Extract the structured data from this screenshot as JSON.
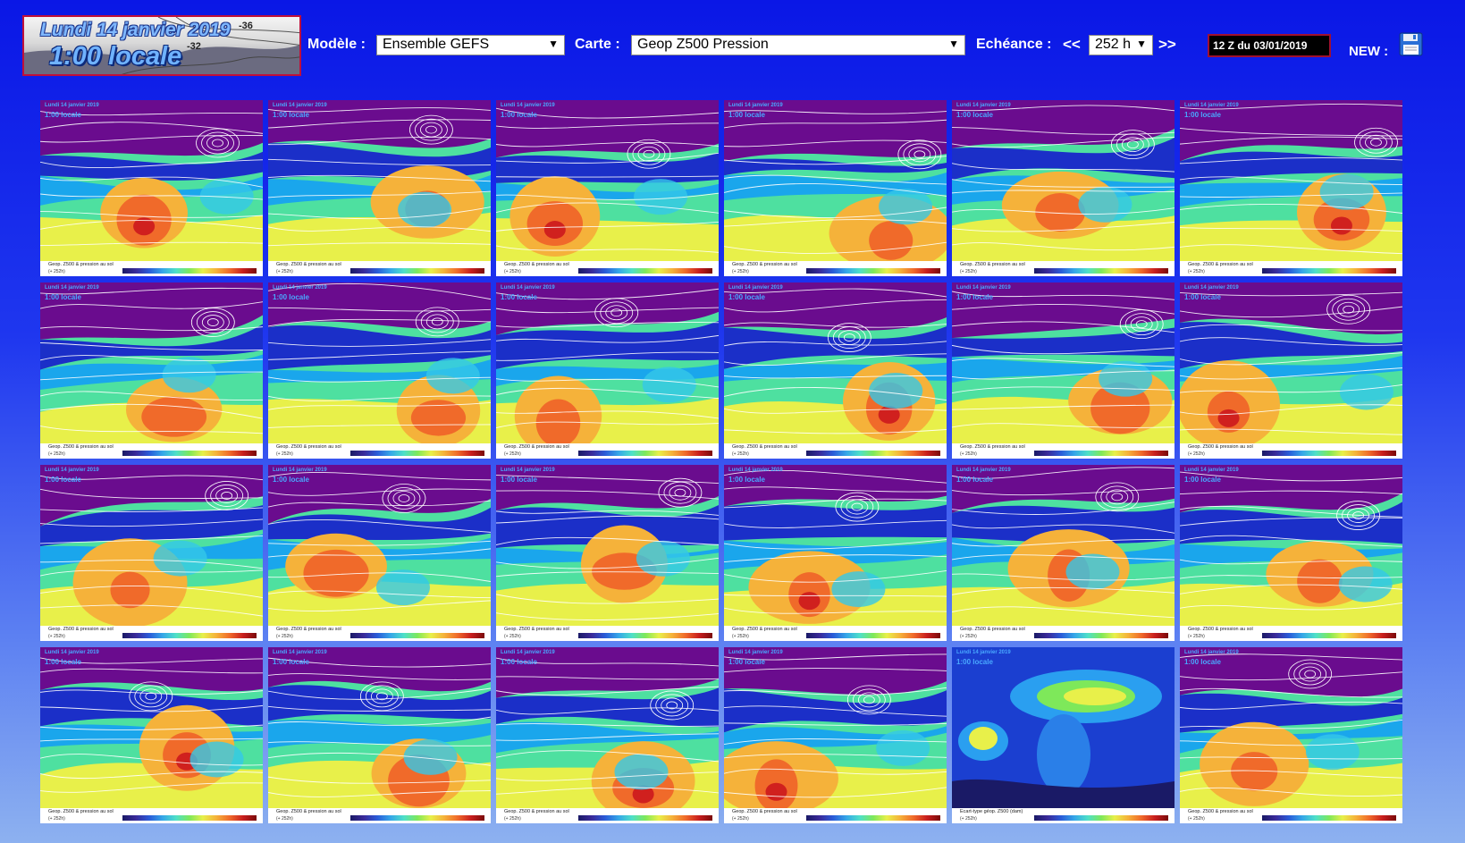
{
  "banner": {
    "date": "Lundi 14 janvier 2019",
    "time": "1:00 locale",
    "iso_a": "-36",
    "iso_b": "-32"
  },
  "controls": {
    "model_label": "Modèle :",
    "model_value": "Ensemble GEFS",
    "map_label": "Carte :",
    "map_value": "Geop Z500 Pression",
    "echeance_label": "Echéance :",
    "prev": "<<",
    "echeance_value": "252 h",
    "next": ">>",
    "run": "12 Z du 03/01/2019",
    "new_label": "NEW :"
  },
  "icons": {
    "save": "floppy-disk-icon",
    "dropdown": "chevron-down-icon"
  },
  "tiles": [
    {
      "type": "member",
      "top": "Lundi 14 janvier 2019",
      "sub": "1:00 locale",
      "ripple": "0"
    },
    {
      "type": "member",
      "top": "Lundi 14 janvier 2019",
      "sub": "1:00 locale",
      "ripple": "1"
    },
    {
      "type": "member",
      "top": "Lundi 14 janvier 2019",
      "sub": "1:00 locale",
      "ripple": "2"
    },
    {
      "type": "member",
      "top": "Lundi 14 janvier 2019",
      "sub": "1:00 locale",
      "ripple": "3"
    },
    {
      "type": "member",
      "top": "Lundi 14 janvier 2019",
      "sub": "1:00 locale",
      "ripple": "4"
    },
    {
      "type": "member",
      "top": "Lundi 14 janvier 2019",
      "sub": "1:00 locale",
      "ripple": "5"
    },
    {
      "type": "member",
      "top": "Lundi 14 janvier 2019",
      "sub": "1:00 locale",
      "ripple": "6"
    },
    {
      "type": "member",
      "top": "Lundi 14 janvier 2019",
      "sub": "1:00 locale",
      "ripple": "7"
    },
    {
      "type": "member",
      "top": "Lundi 14 janvier 2019",
      "sub": "1:00 locale",
      "ripple": "8"
    },
    {
      "type": "member",
      "top": "Lundi 14 janvier 2019",
      "sub": "1:00 locale",
      "ripple": "9"
    },
    {
      "type": "member",
      "top": "Lundi 14 janvier 2019",
      "sub": "1:00 locale",
      "ripple": "10"
    },
    {
      "type": "member",
      "top": "Lundi 14 janvier 2019",
      "sub": "1:00 locale",
      "ripple": "11"
    },
    {
      "type": "member",
      "top": "Lundi 14 janvier 2019",
      "sub": "1:00 locale",
      "ripple": "12"
    },
    {
      "type": "member",
      "top": "Lundi 14 janvier 2019",
      "sub": "1:00 locale",
      "ripple": "13"
    },
    {
      "type": "member",
      "top": "Lundi 14 janvier 2019",
      "sub": "1:00 locale",
      "ripple": "14"
    },
    {
      "type": "member",
      "top": "Lundi 14 janvier 2019",
      "sub": "1:00 locale",
      "ripple": "15"
    },
    {
      "type": "member",
      "top": "Lundi 14 janvier 2019",
      "sub": "1:00 locale",
      "ripple": "16"
    },
    {
      "type": "member",
      "top": "Lundi 14 janvier 2019",
      "sub": "1:00 locale",
      "ripple": "17"
    },
    {
      "type": "member",
      "top": "Lundi 14 janvier 2019",
      "sub": "1:00 locale",
      "ripple": "18"
    },
    {
      "type": "member",
      "top": "Lundi 14 janvier 2019",
      "sub": "1:00 locale",
      "ripple": "19"
    },
    {
      "type": "member",
      "top": "Lundi 14 janvier 2019",
      "sub": "1:00 locale",
      "ripple": "20"
    },
    {
      "type": "member",
      "top": "Lundi 14 janvier 2019",
      "sub": "1:00 locale",
      "ripple": "21"
    },
    {
      "type": "spread",
      "top": "Lundi 14 janvier 2019",
      "sub": "1:00 locale",
      "ripple": "22"
    },
    {
      "type": "member",
      "top": "Lundi 14 janvier 2019",
      "sub": "1:00 locale",
      "ripple": "23"
    }
  ],
  "caption": {
    "member": "Geop. Z500 & pression au sol",
    "spread": "Ecart-type géop. Z500 (dam)",
    "step": "(+ 252h)"
  },
  "palette": {
    "bg": "#0a17e6",
    "accent": "#c0103a"
  }
}
